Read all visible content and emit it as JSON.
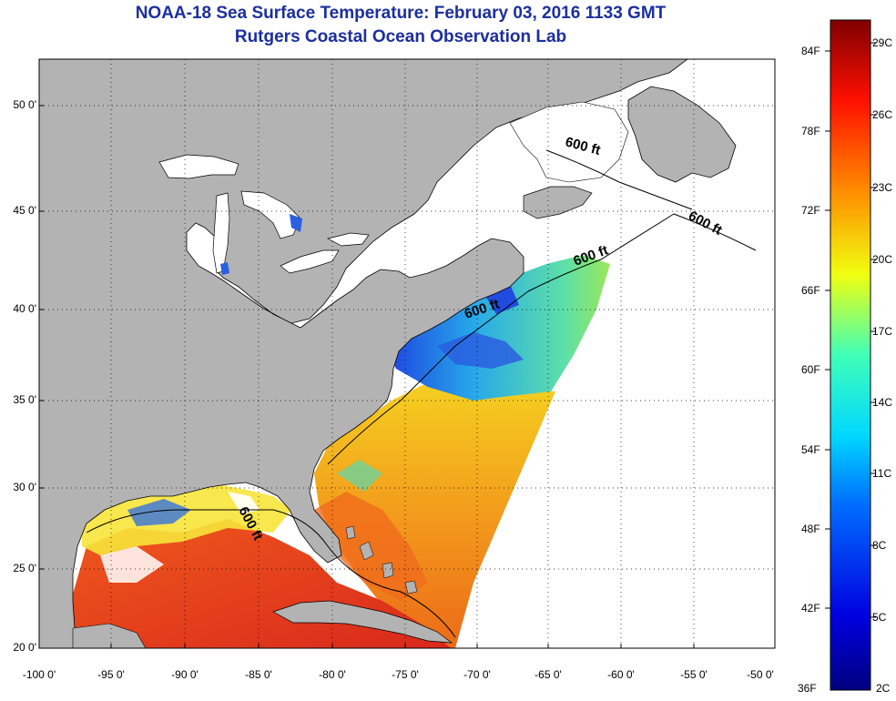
{
  "title": {
    "line1": "NOAA-18 Sea Surface Temperature:  February 03, 2016 1133 GMT",
    "line2": "Rutgers Coastal Ocean Observation Lab"
  },
  "latitude_labels": [
    "50 0'",
    "45 0'",
    "40 0'",
    "35 0'",
    "30 0'",
    "25 0'",
    "20 0'"
  ],
  "longitude_labels": [
    "-100 0'",
    "-95 0'",
    "-90 0'",
    "-85 0'",
    "-80 0'",
    "-75 0'",
    "-70 0'",
    "-65 0'",
    "-60 0'",
    "-55 0'",
    "-50 0'"
  ],
  "isobath_labels": [
    "600 ft",
    "600 ft",
    "600 ft",
    "600 ft",
    "600 ft"
  ],
  "colorbar": {
    "fahrenheit": [
      "84F",
      "78F",
      "72F",
      "66F",
      "60F",
      "54F",
      "48F",
      "42F",
      "36F"
    ],
    "celsius": [
      "29C",
      "26C",
      "23C",
      "20C",
      "17C",
      "14C",
      "11C",
      "8C",
      "5C",
      "2C"
    ]
  },
  "colors": {
    "land": "#b3b3b3",
    "water_no_data": "#ffffff",
    "title": "#1c2f9e",
    "gulf_stream_warm": "#e8401c",
    "shelf_cold": "#2a5fe0"
  }
}
